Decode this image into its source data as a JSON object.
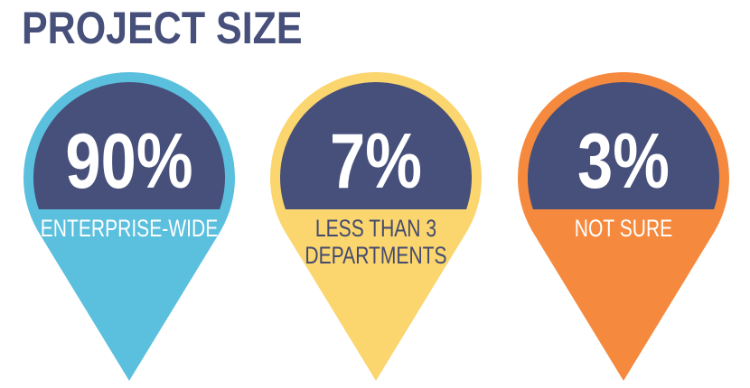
{
  "title": "PROJECT SIZE",
  "colors": {
    "title": "#46507a",
    "cap": "#46507a",
    "pin_colors": [
      "#5bbfde",
      "#fbd56e",
      "#f58a3e"
    ],
    "label_colors": [
      "#ffffff",
      "#434a6e",
      "#ffffff"
    ]
  },
  "chart_data": {
    "type": "pie",
    "title": "PROJECT SIZE",
    "categories": [
      "ENTERPRISE-WIDE",
      "LESS THAN 3 DEPARTMENTS",
      "NOT SURE"
    ],
    "values": [
      90,
      7,
      3
    ],
    "value_labels": [
      "90%",
      "7%",
      "3%"
    ],
    "label_lines": [
      [
        "ENTERPRISE-WIDE"
      ],
      [
        "LESS THAN 3",
        "DEPARTMENTS"
      ],
      [
        "NOT SURE"
      ]
    ]
  }
}
